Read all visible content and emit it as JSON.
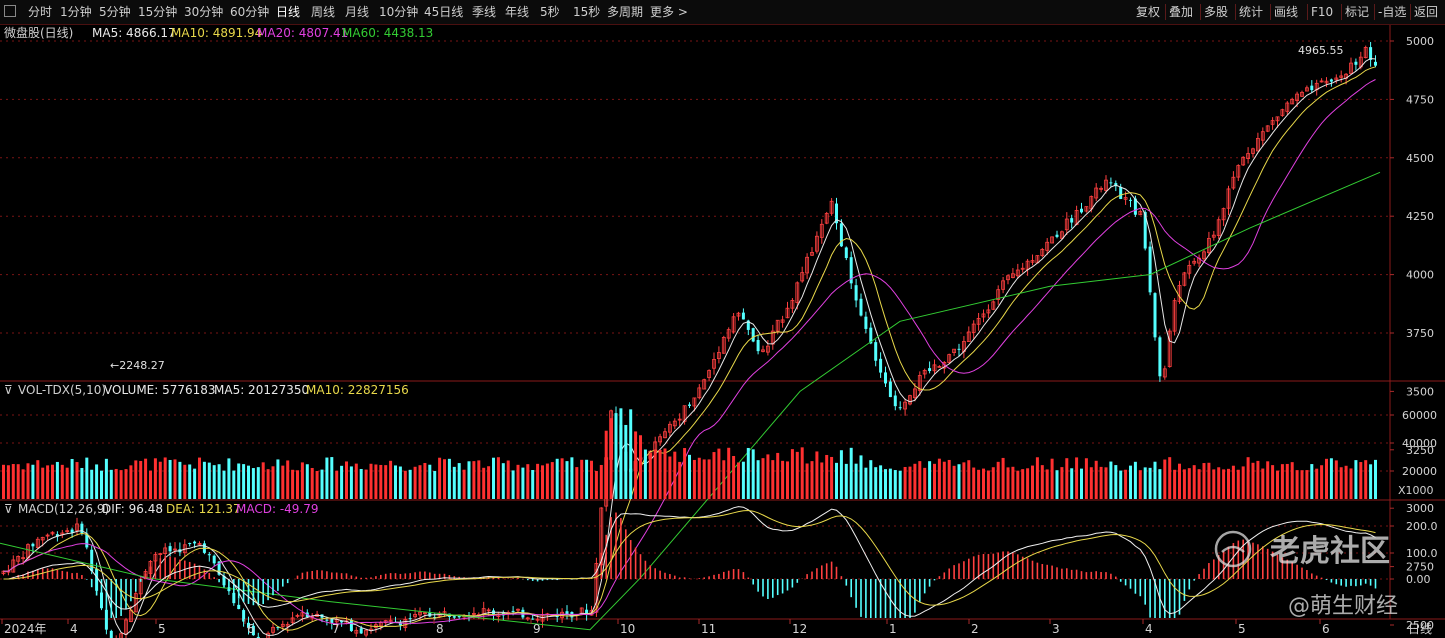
{
  "toolbar": {
    "periods": [
      "分时",
      "1分钟",
      "5分钟",
      "15分钟",
      "30分钟",
      "60分钟",
      "日线",
      "周线",
      "月线",
      "10分钟",
      "45日线",
      "季线",
      "年线",
      "5秒",
      "15秒",
      "多周期",
      "更多 >"
    ],
    "active_period": "日线",
    "right_buttons": [
      "复权",
      "叠加",
      "多股",
      "统计",
      "画线",
      "F10",
      "标记",
      "-自选",
      "返回"
    ]
  },
  "main_panel": {
    "title": "微盘股(日线)",
    "indicators": [
      {
        "label": "MA5: 4866.17",
        "color": "#e8e8e8"
      },
      {
        "label": "MA10: 4891.94",
        "color": "#e8d84a"
      },
      {
        "label": "MA20: 4807.41",
        "color": "#e040e0"
      },
      {
        "label": "MA60: 4438.13",
        "color": "#33cc33"
      }
    ],
    "high_label": "4965.55",
    "low_label": "2248.27",
    "y_ticks": [
      "5000",
      "4750",
      "4500",
      "4250",
      "4000",
      "3750",
      "3500",
      "3250",
      "3000",
      "2750",
      "2500"
    ]
  },
  "volume_panel": {
    "title": "VOL-TDX(5,10)",
    "volume": "VOLUME: 5776183",
    "ma5": "MA5: 20127350",
    "ma10": "MA10: 22827156",
    "y_ticks": [
      "60000",
      "40000",
      "20000"
    ],
    "unit": "X1000"
  },
  "macd_panel": {
    "title": "MACD(12,26,9)",
    "dif": "DIF: 96.48",
    "dea": "DEA: 121.37",
    "macd": "MACD: -49.79",
    "y_ticks": [
      "200.0",
      "100.0",
      "0.00"
    ]
  },
  "x_axis": {
    "labels": [
      "2024年",
      "4",
      "5",
      "6",
      "7",
      "8",
      "9",
      "10",
      "11",
      "12",
      "1",
      "2",
      "3",
      "4",
      "5",
      "6"
    ],
    "period_label": "日线"
  },
  "watermark": {
    "line1": "老虎社区",
    "line2": "@萌生财经"
  },
  "colors": {
    "up": "#ff4040",
    "down": "#54ffff",
    "grid": "#7a1414",
    "ma5": "#e8e8e8",
    "ma10": "#e8d84a",
    "ma20": "#e040e0",
    "ma60": "#33cc33"
  },
  "chart_data": {
    "type": "line",
    "series": [
      {
        "name": "MA60",
        "x": [
          "2024-03",
          "2024-05",
          "2024-07",
          "2024-09",
          "2024-10",
          "2024-12",
          "2025-01",
          "2025-03",
          "2025-04",
          "2025-05",
          "2025-06"
        ],
        "values": [
          2850,
          2700,
          2600,
          2480,
          2700,
          3500,
          3800,
          3950,
          4000,
          4200,
          4438
        ]
      }
    ],
    "ylim": [
      2250,
      5050
    ]
  }
}
